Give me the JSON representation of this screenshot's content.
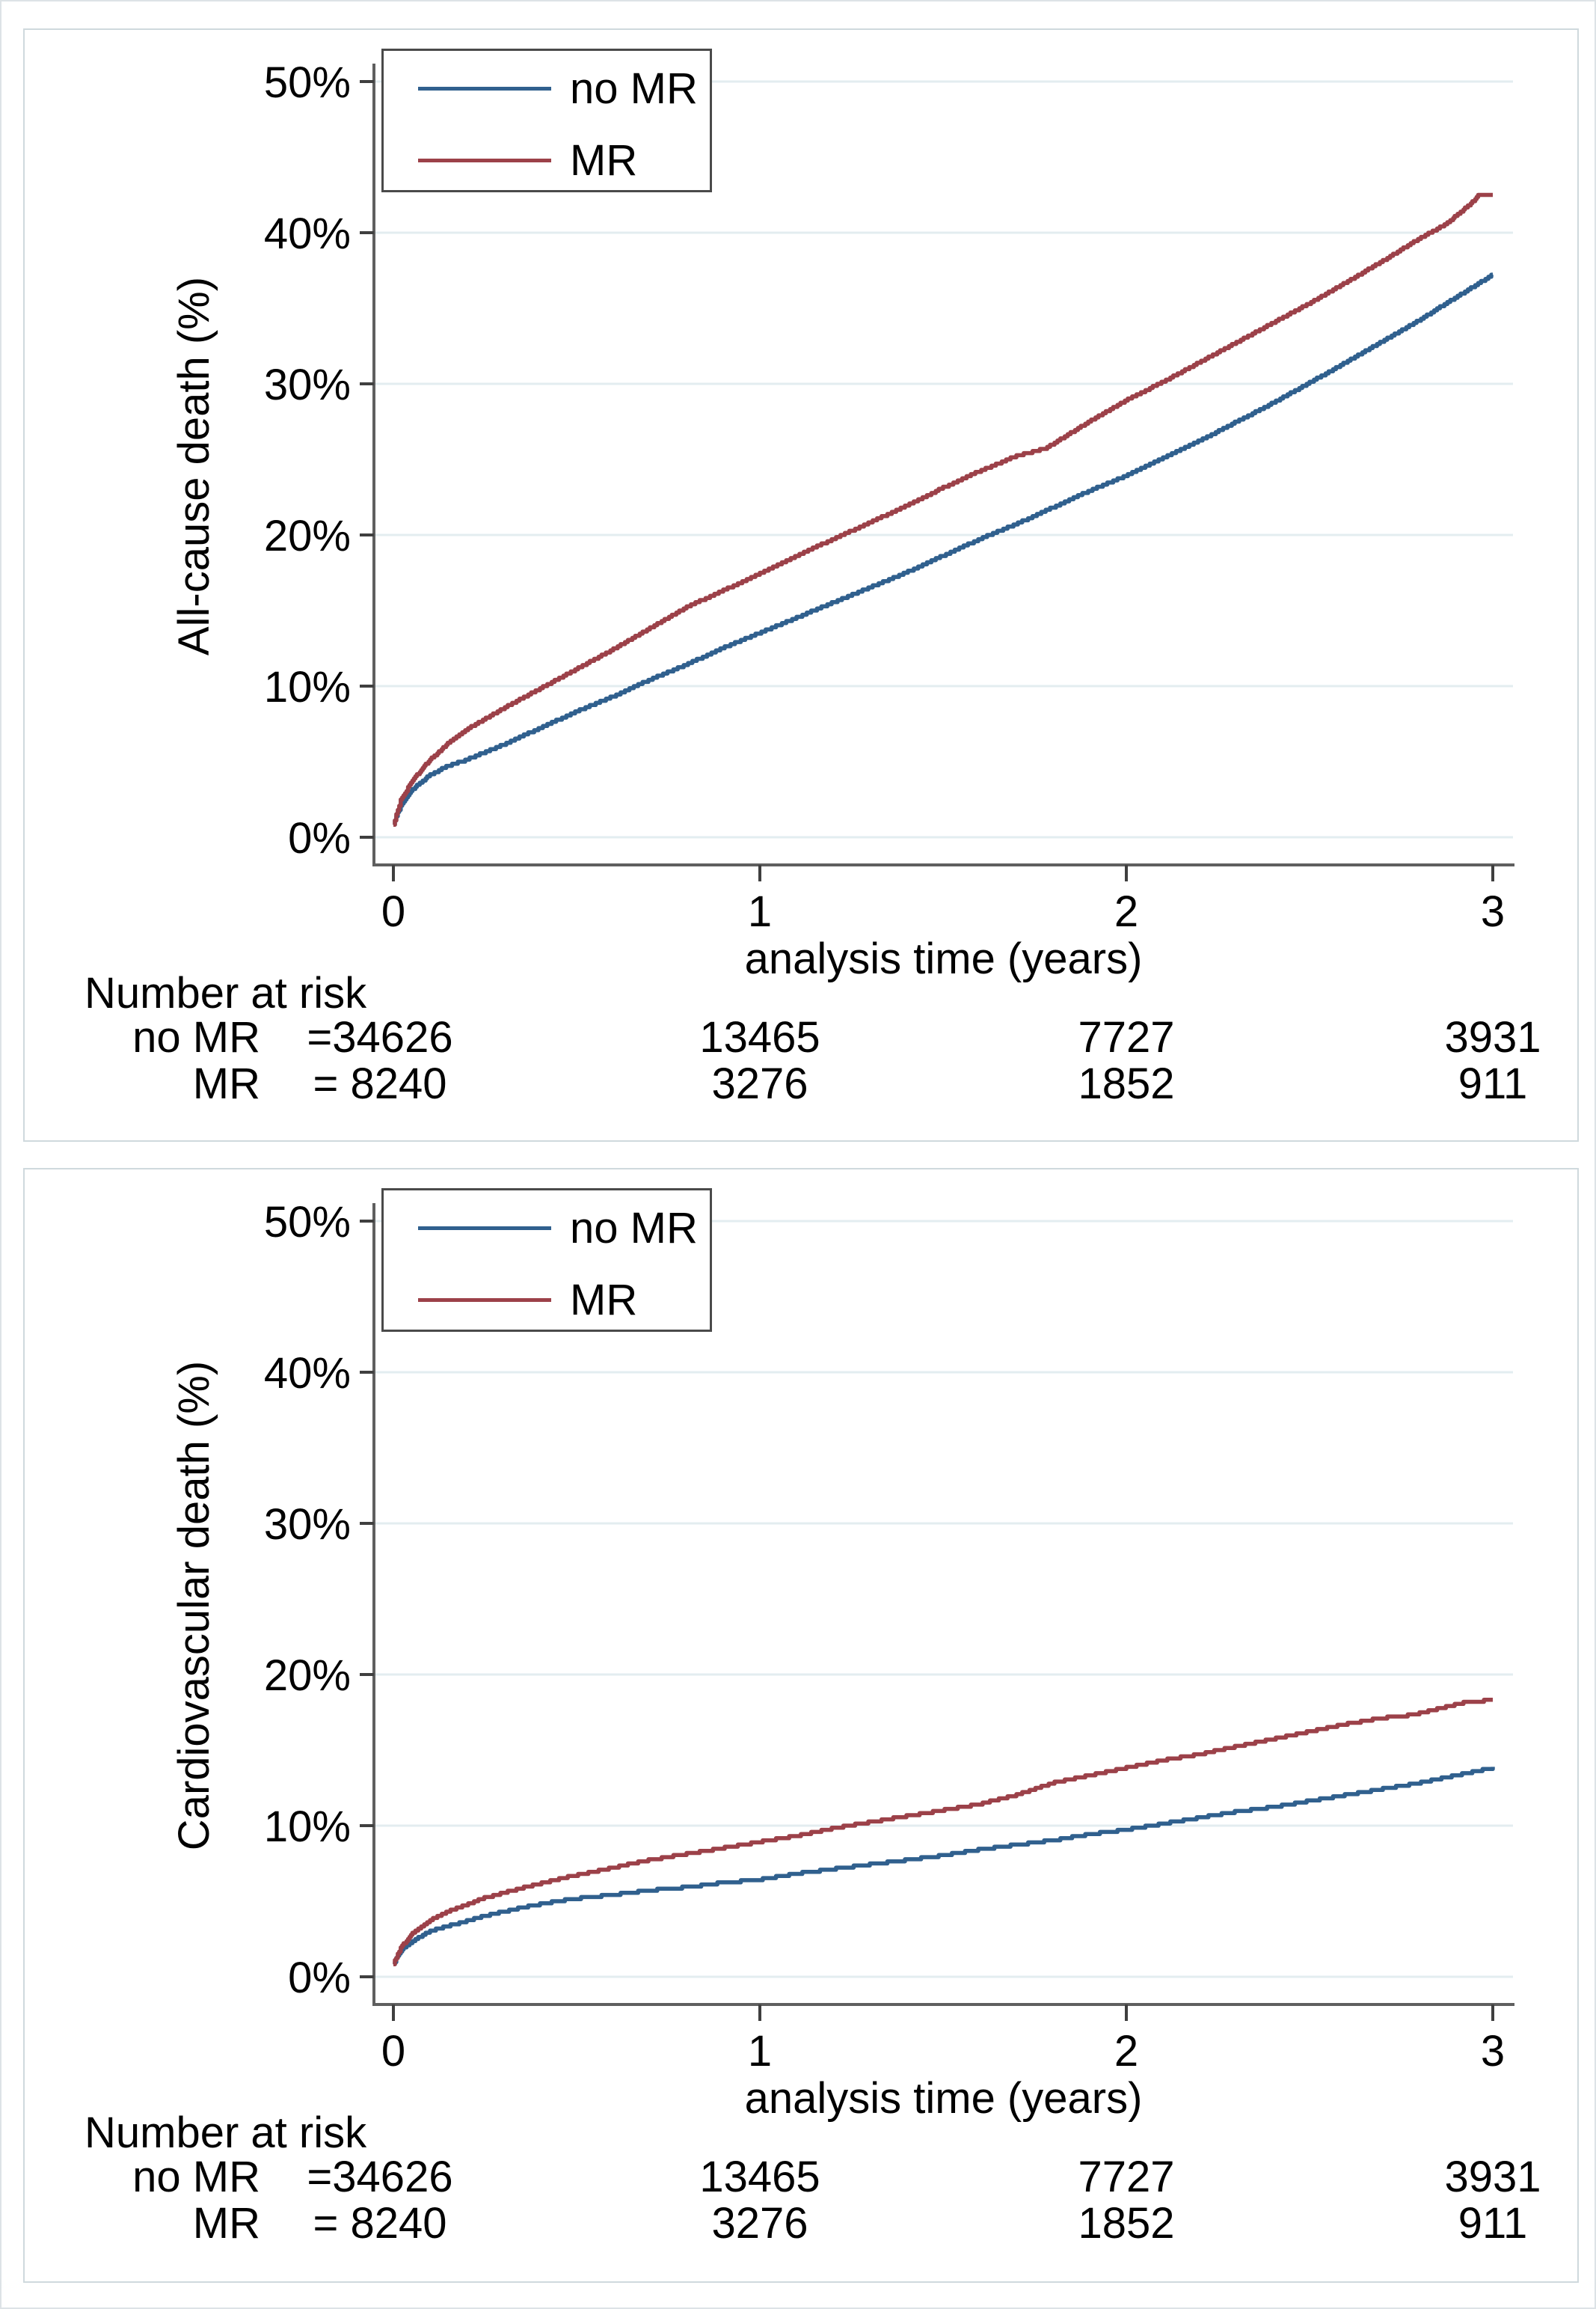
{
  "figure": {
    "description": "Two stacked Kaplan-Meier style cumulative incidence plots comparing patients with and without mitral regurgitation (MR)",
    "accent_blue": "#30608E",
    "accent_red": "#9C4149",
    "grid_color": "#E3EDF0",
    "axis_color": "#5f5f5f"
  },
  "chart_data": [
    {
      "type": "line",
      "title": "",
      "xlabel": "analysis time (years)",
      "ylabel": "All-cause death (%)",
      "xlim": [
        0,
        3
      ],
      "ylim": [
        0,
        50
      ],
      "grid": true,
      "legend_position": "top-left",
      "xticks": [
        "0",
        "1",
        "2",
        "3"
      ],
      "xtick_values": [
        0,
        1,
        2,
        3
      ],
      "yticks": [
        "0%",
        "10%",
        "20%",
        "30%",
        "40%",
        "50%"
      ],
      "ytick_values": [
        0,
        10,
        20,
        30,
        40,
        50
      ],
      "series": [
        {
          "name": "no MR",
          "color": "#30608E",
          "points": [
            [
              0,
              0.9
            ],
            [
              0.02,
              2.2
            ],
            [
              0.05,
              3.2
            ],
            [
              0.1,
              4.2
            ],
            [
              0.15,
              4.8
            ],
            [
              0.2,
              5.2
            ],
            [
              0.3,
              6.2
            ],
            [
              0.4,
              7.3
            ],
            [
              0.5,
              8.4
            ],
            [
              0.6,
              9.4
            ],
            [
              0.7,
              10.5
            ],
            [
              0.8,
              11.5
            ],
            [
              0.9,
              12.6
            ],
            [
              1.0,
              13.6
            ],
            [
              1.1,
              14.6
            ],
            [
              1.2,
              15.6
            ],
            [
              1.3,
              16.6
            ],
            [
              1.4,
              17.6
            ],
            [
              1.5,
              18.7
            ],
            [
              1.6,
              19.8
            ],
            [
              1.7,
              20.8
            ],
            [
              1.8,
              21.9
            ],
            [
              1.9,
              23.0
            ],
            [
              2.0,
              24.0
            ],
            [
              2.2,
              26.3
            ],
            [
              2.4,
              28.8
            ],
            [
              2.6,
              31.5
            ],
            [
              2.8,
              34.3
            ],
            [
              2.9,
              35.8
            ],
            [
              3.0,
              37.3
            ]
          ]
        },
        {
          "name": "MR",
          "color": "#9C4149",
          "points": [
            [
              0,
              0.9
            ],
            [
              0.02,
              2.5
            ],
            [
              0.05,
              3.8
            ],
            [
              0.1,
              5.2
            ],
            [
              0.15,
              6.3
            ],
            [
              0.2,
              7.2
            ],
            [
              0.3,
              8.6
            ],
            [
              0.4,
              9.9
            ],
            [
              0.5,
              11.2
            ],
            [
              0.6,
              12.5
            ],
            [
              0.7,
              13.9
            ],
            [
              0.8,
              15.3
            ],
            [
              0.9,
              16.4
            ],
            [
              1.0,
              17.5
            ],
            [
              1.1,
              18.7
            ],
            [
              1.2,
              19.8
            ],
            [
              1.3,
              20.9
            ],
            [
              1.4,
              22.0
            ],
            [
              1.5,
              23.2
            ],
            [
              1.6,
              24.3
            ],
            [
              1.7,
              25.3
            ],
            [
              1.78,
              25.8
            ],
            [
              1.9,
              27.6
            ],
            [
              2.0,
              29.0
            ],
            [
              2.1,
              30.2
            ],
            [
              2.2,
              31.5
            ],
            [
              2.3,
              32.8
            ],
            [
              2.4,
              34.1
            ],
            [
              2.5,
              35.4
            ],
            [
              2.6,
              36.8
            ],
            [
              2.7,
              38.2
            ],
            [
              2.8,
              39.7
            ],
            [
              2.87,
              40.6
            ],
            [
              2.93,
              41.8
            ],
            [
              2.96,
              42.5
            ],
            [
              3.0,
              42.6
            ]
          ]
        }
      ],
      "risk_table": {
        "title": "Number at risk",
        "times": [
          0,
          1,
          2,
          3
        ],
        "rows": [
          {
            "label": "no MR",
            "values": [
              "=34626",
              "13465",
              "7727",
              "3931"
            ]
          },
          {
            "label": "MR",
            "values": [
              "= 8240",
              "3276",
              "1852",
              "911"
            ]
          }
        ]
      }
    },
    {
      "type": "line",
      "title": "",
      "xlabel": "analysis time (years)",
      "ylabel": "Cardiovascular death (%)",
      "xlim": [
        0,
        3
      ],
      "ylim": [
        0,
        50
      ],
      "grid": true,
      "legend_position": "top-left",
      "xticks": [
        "0",
        "1",
        "2",
        "3"
      ],
      "xtick_values": [
        0,
        1,
        2,
        3
      ],
      "yticks": [
        "0%",
        "10%",
        "20%",
        "30%",
        "40%",
        "50%"
      ],
      "ytick_values": [
        0,
        10,
        20,
        30,
        40,
        50
      ],
      "series": [
        {
          "name": "no MR",
          "color": "#30608E",
          "points": [
            [
              0,
              0.9
            ],
            [
              0.02,
              1.8
            ],
            [
              0.05,
              2.4
            ],
            [
              0.1,
              3.1
            ],
            [
              0.16,
              3.5
            ],
            [
              0.25,
              4.1
            ],
            [
              0.36,
              4.7
            ],
            [
              0.48,
              5.2
            ],
            [
              0.6,
              5.5
            ],
            [
              0.7,
              5.8
            ],
            [
              0.8,
              6.0
            ],
            [
              0.9,
              6.3
            ],
            [
              1.0,
              6.5
            ],
            [
              1.1,
              6.9
            ],
            [
              1.2,
              7.2
            ],
            [
              1.3,
              7.5
            ],
            [
              1.4,
              7.8
            ],
            [
              1.5,
              8.1
            ],
            [
              1.6,
              8.5
            ],
            [
              1.7,
              8.8
            ],
            [
              1.8,
              9.1
            ],
            [
              1.9,
              9.5
            ],
            [
              2.0,
              9.8
            ],
            [
              2.1,
              10.2
            ],
            [
              2.2,
              10.6
            ],
            [
              2.3,
              11.0
            ],
            [
              2.4,
              11.3
            ],
            [
              2.5,
              11.7
            ],
            [
              2.6,
              12.1
            ],
            [
              2.7,
              12.5
            ],
            [
              2.8,
              12.9
            ],
            [
              2.9,
              13.4
            ],
            [
              3.0,
              13.9
            ]
          ]
        },
        {
          "name": "MR",
          "color": "#9C4149",
          "points": [
            [
              0,
              0.9
            ],
            [
              0.02,
              2.0
            ],
            [
              0.05,
              2.9
            ],
            [
              0.1,
              3.8
            ],
            [
              0.16,
              4.5
            ],
            [
              0.25,
              5.3
            ],
            [
              0.36,
              6.0
            ],
            [
              0.48,
              6.7
            ],
            [
              0.6,
              7.3
            ],
            [
              0.7,
              7.8
            ],
            [
              0.8,
              8.2
            ],
            [
              0.9,
              8.6
            ],
            [
              1.0,
              9.0
            ],
            [
              1.1,
              9.4
            ],
            [
              1.2,
              9.9
            ],
            [
              1.3,
              10.3
            ],
            [
              1.4,
              10.7
            ],
            [
              1.5,
              11.1
            ],
            [
              1.6,
              11.5
            ],
            [
              1.7,
              12.1
            ],
            [
              1.8,
              12.9
            ],
            [
              1.9,
              13.4
            ],
            [
              2.0,
              13.9
            ],
            [
              2.1,
              14.4
            ],
            [
              2.2,
              14.8
            ],
            [
              2.3,
              15.3
            ],
            [
              2.4,
              15.8
            ],
            [
              2.5,
              16.3
            ],
            [
              2.6,
              16.8
            ],
            [
              2.7,
              17.2
            ],
            [
              2.78,
              17.4
            ],
            [
              2.85,
              17.8
            ],
            [
              2.92,
              18.2
            ],
            [
              3.0,
              18.4
            ]
          ]
        }
      ],
      "risk_table": {
        "title": "Number at risk",
        "times": [
          0,
          1,
          2,
          3
        ],
        "rows": [
          {
            "label": "no MR",
            "values": [
              "=34626",
              "13465",
              "7727",
              "3931"
            ]
          },
          {
            "label": "MR",
            "values": [
              "= 8240",
              "3276",
              "1852",
              "911"
            ]
          }
        ]
      }
    }
  ]
}
